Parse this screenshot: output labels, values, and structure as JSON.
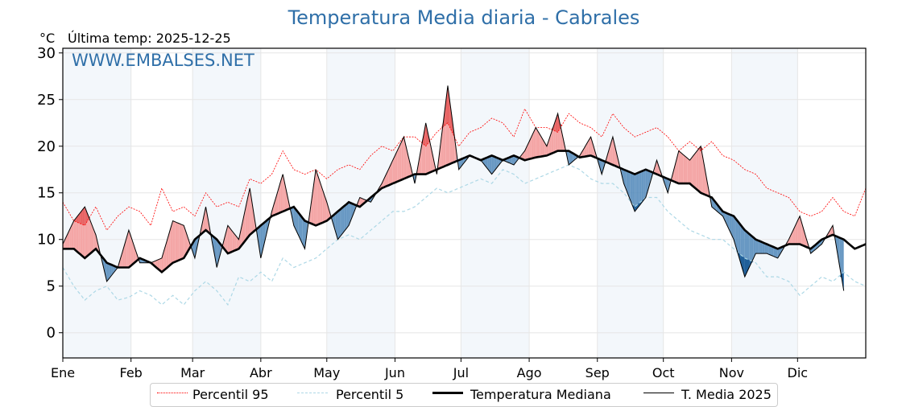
{
  "header": {
    "title": "Temperatura Media diaria - Cabrales",
    "unit": "°C",
    "last_temp_label": "Última temp: 2025-12-25",
    "watermark": "WWW.EMBALSES.NET"
  },
  "legend": {
    "items": [
      {
        "label": "Percentil 95",
        "color": "#ff0000",
        "style": "dotted"
      },
      {
        "label": "Percentil 5",
        "color": "#add8e6",
        "style": "dashed"
      },
      {
        "label": "Temperatura Mediana",
        "color": "#000000",
        "style": "solid-thick"
      },
      {
        "label": "T. Media 2025",
        "color": "#000000",
        "style": "solid-thin"
      }
    ]
  },
  "colors": {
    "title": "#2f6fa8",
    "above_median_fill": "#f4a6a6",
    "above_p95_fill": "#e86464",
    "below_median_fill": "#4f87b9",
    "below_p5_fill": "#1f5f99",
    "month_band": "#f3f7fb",
    "grid": "#e6e6e6"
  },
  "chart_data": {
    "type": "line",
    "title": "Temperatura Media diaria - Cabrales",
    "xlabel": "",
    "ylabel": "°C",
    "ylim": [
      -2.7,
      30.5
    ],
    "xlim": [
      0,
      365
    ],
    "yticks": [
      0,
      5,
      10,
      15,
      20,
      25,
      30
    ],
    "xtick_labels": [
      "Ene",
      "Feb",
      "Mar",
      "Abr",
      "May",
      "Jun",
      "Jul",
      "Ago",
      "Sep",
      "Oct",
      "Nov",
      "Dic"
    ],
    "xtick_days": [
      0,
      31,
      59,
      90,
      120,
      151,
      181,
      212,
      243,
      273,
      304,
      334
    ],
    "grid": true,
    "legend_position": "bottom-center",
    "x_unit": "day of year",
    "x": [
      0,
      5,
      10,
      15,
      20,
      25,
      30,
      35,
      40,
      45,
      50,
      55,
      60,
      65,
      70,
      75,
      80,
      85,
      90,
      95,
      100,
      105,
      110,
      115,
      120,
      125,
      130,
      135,
      140,
      145,
      150,
      155,
      160,
      165,
      170,
      175,
      180,
      185,
      190,
      195,
      200,
      205,
      210,
      215,
      220,
      225,
      230,
      235,
      240,
      245,
      250,
      255,
      260,
      265,
      270,
      275,
      280,
      285,
      290,
      295,
      300,
      305,
      310,
      315,
      320,
      325,
      330,
      335,
      340,
      345,
      350,
      355,
      360,
      365
    ],
    "series": [
      {
        "name": "Percentil 95",
        "values": [
          14.0,
          12.0,
          11.5,
          13.5,
          11.0,
          12.5,
          13.5,
          13.0,
          11.5,
          15.5,
          13.0,
          13.5,
          12.5,
          15.0,
          13.5,
          14.0,
          13.5,
          16.5,
          16.0,
          17.0,
          19.5,
          17.5,
          17.0,
          17.5,
          16.5,
          17.5,
          18.0,
          17.5,
          19.0,
          20.0,
          19.5,
          21.0,
          21.0,
          20.0,
          21.5,
          22.5,
          20.0,
          21.5,
          22.0,
          23.0,
          22.5,
          21.0,
          24.0,
          22.0,
          22.0,
          21.5,
          23.5,
          22.5,
          22.0,
          21.0,
          23.5,
          22.0,
          21.0,
          21.5,
          22.0,
          21.0,
          19.5,
          20.5,
          19.5,
          20.5,
          19.0,
          18.5,
          17.5,
          17.0,
          15.5,
          15.0,
          14.5,
          13.0,
          12.5,
          13.0,
          14.5,
          13.0,
          12.5,
          15.5
        ]
      },
      {
        "name": "Percentil 5",
        "values": [
          7.0,
          5.0,
          3.5,
          4.5,
          5.0,
          3.5,
          3.8,
          4.5,
          4.0,
          3.0,
          4.0,
          3.0,
          4.5,
          5.5,
          4.5,
          3.0,
          6.0,
          5.5,
          6.5,
          5.5,
          8.0,
          7.0,
          7.5,
          8.0,
          9.0,
          10.0,
          10.5,
          10.0,
          11.0,
          12.0,
          13.0,
          13.0,
          13.5,
          14.5,
          15.5,
          15.0,
          15.5,
          16.0,
          16.5,
          16.0,
          17.5,
          17.0,
          16.0,
          16.5,
          17.0,
          17.5,
          18.0,
          17.5,
          16.5,
          16.0,
          16.0,
          15.0,
          13.5,
          14.5,
          14.5,
          13.0,
          12.0,
          11.0,
          10.5,
          10.0,
          10.0,
          9.0,
          8.0,
          7.5,
          6.0,
          6.0,
          5.5,
          4.0,
          5.0,
          6.0,
          5.5,
          6.5,
          5.5,
          5.0
        ]
      },
      {
        "name": "Temperatura Mediana",
        "values": [
          9.0,
          9.0,
          8.0,
          9.0,
          7.5,
          7.0,
          7.0,
          8.0,
          7.5,
          6.5,
          7.5,
          8.0,
          10.0,
          11.0,
          10.0,
          8.5,
          9.0,
          10.5,
          11.5,
          12.5,
          13.0,
          13.5,
          12.0,
          11.5,
          12.0,
          13.0,
          14.0,
          13.5,
          14.5,
          15.5,
          16.0,
          16.5,
          17.0,
          17.0,
          17.5,
          18.0,
          18.5,
          19.0,
          18.5,
          19.0,
          18.5,
          19.0,
          18.5,
          18.8,
          19.0,
          19.5,
          19.5,
          18.8,
          19.0,
          18.5,
          18.0,
          17.5,
          17.0,
          17.5,
          17.0,
          16.5,
          16.0,
          16.0,
          15.0,
          14.5,
          13.0,
          12.5,
          11.0,
          10.0,
          9.5,
          9.0,
          9.5,
          9.5,
          9.0,
          10.0,
          10.5,
          10.0,
          9.0,
          9.5
        ]
      },
      {
        "name": "T. Media 2025",
        "values": [
          9.5,
          12.0,
          13.5,
          10.5,
          5.5,
          7.0,
          11.0,
          7.5,
          7.5,
          8.0,
          12.0,
          11.5,
          8.0,
          13.5,
          7.0,
          11.5,
          10.0,
          15.5,
          8.0,
          13.0,
          17.0,
          11.5,
          9.0,
          17.5,
          14.0,
          10.0,
          11.5,
          14.5,
          14.0,
          16.0,
          18.5,
          21.0,
          16.0,
          22.5,
          17.0,
          26.5,
          17.5,
          19.0,
          18.5,
          17.0,
          18.5,
          18.0,
          19.5,
          22.0,
          20.0,
          23.5,
          18.0,
          19.0,
          21.0,
          17.0,
          21.0,
          16.0,
          13.0,
          14.5,
          18.5,
          15.0,
          19.5,
          18.5,
          20.0,
          13.5,
          12.5,
          10.0,
          6.0,
          8.5,
          8.5,
          8.0,
          10.0,
          12.5,
          8.5,
          9.5,
          11.5,
          4.5,
          null,
          null
        ]
      }
    ]
  }
}
